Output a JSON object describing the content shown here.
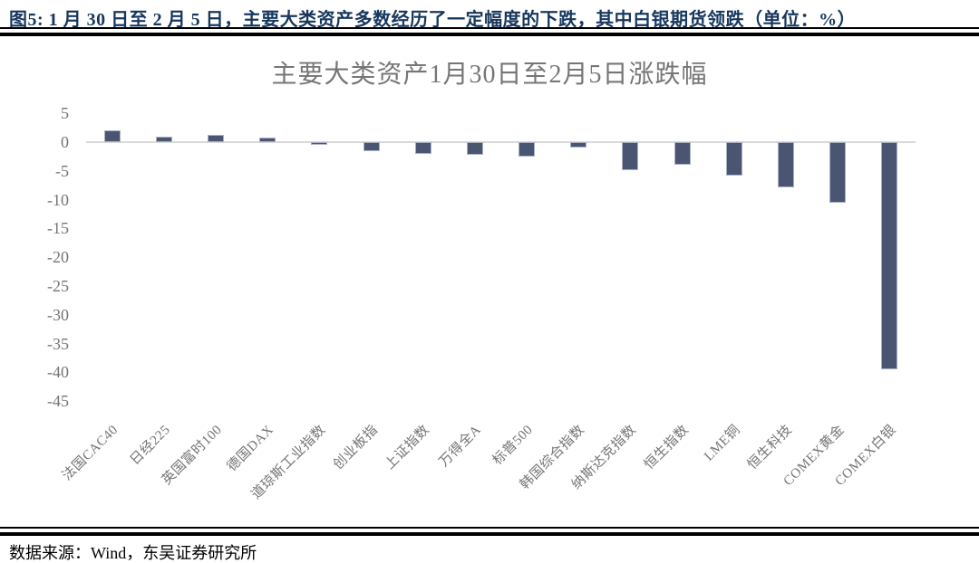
{
  "figure_header": {
    "text": "图5:  1 月 30 日至 2 月 5 日，主要大类资产多数经历了一定幅度的下跌，其中白银期货领跌（单位：%）"
  },
  "chart_data": {
    "type": "bar",
    "title": "主要大类资产1月30日至2月5日涨跌幅",
    "unit": "%",
    "categories": [
      "法国CAC40",
      "日经225",
      "英国富时100",
      "德国DAX",
      "道琼斯工业指数",
      "创业板指",
      "上证指数",
      "万得全A",
      "标普500",
      "韩国综合指数",
      "纳斯达克指数",
      "恒生指数",
      "LME铜",
      "恒生科技",
      "COMEX黄金",
      "COMEX白银"
    ],
    "values": [
      2.1,
      0.9,
      1.3,
      0.8,
      -0.4,
      -1.5,
      -2.0,
      -2.2,
      -2.5,
      -1.0,
      -4.9,
      -3.9,
      -5.8,
      -7.9,
      -10.6,
      -39.5
    ],
    "yticks": [
      5,
      0,
      -5,
      -10,
      -15,
      -20,
      -25,
      -30,
      -35,
      -40,
      -45
    ],
    "ylim": [
      -45,
      5
    ],
    "xlabel": "",
    "ylabel": "",
    "legend": "none",
    "grid": "zero-line-only",
    "bar_color": "#4A5572",
    "bar_border_color": "#A9B1C2",
    "zero_line_color": "#D9D9D9",
    "axis_text_color": "#757575"
  },
  "footer": {
    "source": "数据来源：Wind，东吴证券研究所"
  }
}
